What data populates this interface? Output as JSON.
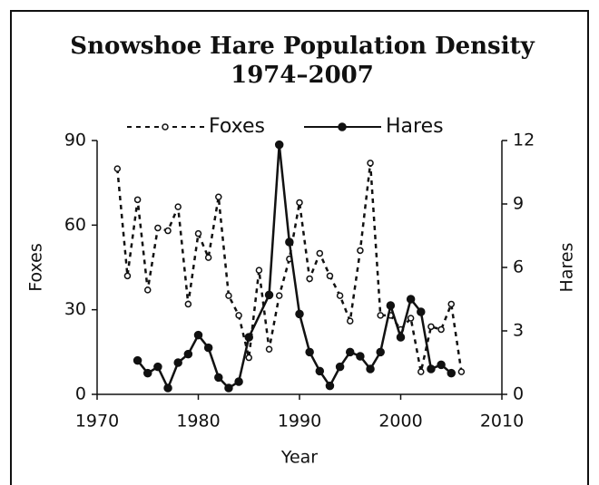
{
  "chart_data": {
    "type": "line",
    "title": "Snowshoe Hare Population Density",
    "subtitle": "1974–2007",
    "x_label": "Year",
    "y_label": "Foxes",
    "y2_label": "Hares",
    "legend": "top",
    "xlim": [
      1970,
      2010
    ],
    "xticks": [
      1970,
      1980,
      1990,
      2000,
      2010
    ],
    "ylim": [
      0,
      90
    ],
    "yticks": [
      0,
      30,
      60,
      90
    ],
    "y2lim": [
      0,
      12
    ],
    "y2ticks": [
      0,
      3,
      6,
      9,
      12
    ],
    "series": [
      {
        "name": "Foxes",
        "color": "#111111",
        "line_style": "dotted",
        "marker": "open",
        "x": [
          1972,
          1973,
          1974,
          1975,
          1976,
          1977,
          1978,
          1979,
          1980,
          1981,
          1982,
          1983,
          1984,
          1985,
          1986,
          1987,
          1988,
          1989,
          1990,
          1991,
          1992,
          1993,
          1994,
          1995,
          1996,
          1997,
          1998,
          1999,
          2000,
          2001,
          2002,
          2003,
          2004,
          2005,
          2006
        ],
        "values": [
          80,
          42,
          69,
          37,
          59,
          58,
          66.5,
          32,
          57,
          48.5,
          70,
          35,
          28,
          13,
          44,
          16,
          35,
          48,
          68,
          41,
          50,
          42,
          35,
          26,
          51,
          82,
          28,
          28,
          23,
          27,
          8,
          24,
          23,
          32,
          8
        ]
      },
      {
        "name": "Hares",
        "color": "#111111",
        "line_style": "solid",
        "marker": "filled",
        "axis": "y2",
        "x": [
          1974,
          1975,
          1976,
          1977,
          1978,
          1979,
          1980,
          1981,
          1982,
          1983,
          1984,
          1985,
          1987,
          1988,
          1989,
          1990,
          1991,
          1992,
          1993,
          1994,
          1995,
          1996,
          1997,
          1998,
          1999,
          2000,
          2001,
          2002,
          2003,
          2004,
          2005
        ],
        "values": [
          1.6,
          1.0,
          1.3,
          0.3,
          1.5,
          1.9,
          2.8,
          2.2,
          0.8,
          0.3,
          0.6,
          2.7,
          4.7,
          11.8,
          7.2,
          3.8,
          2.0,
          1.1,
          0.4,
          1.3,
          2.0,
          1.8,
          1.2,
          2.0,
          4.2,
          2.7,
          4.5,
          3.9,
          1.2,
          1.4,
          1.0
        ]
      }
    ]
  }
}
